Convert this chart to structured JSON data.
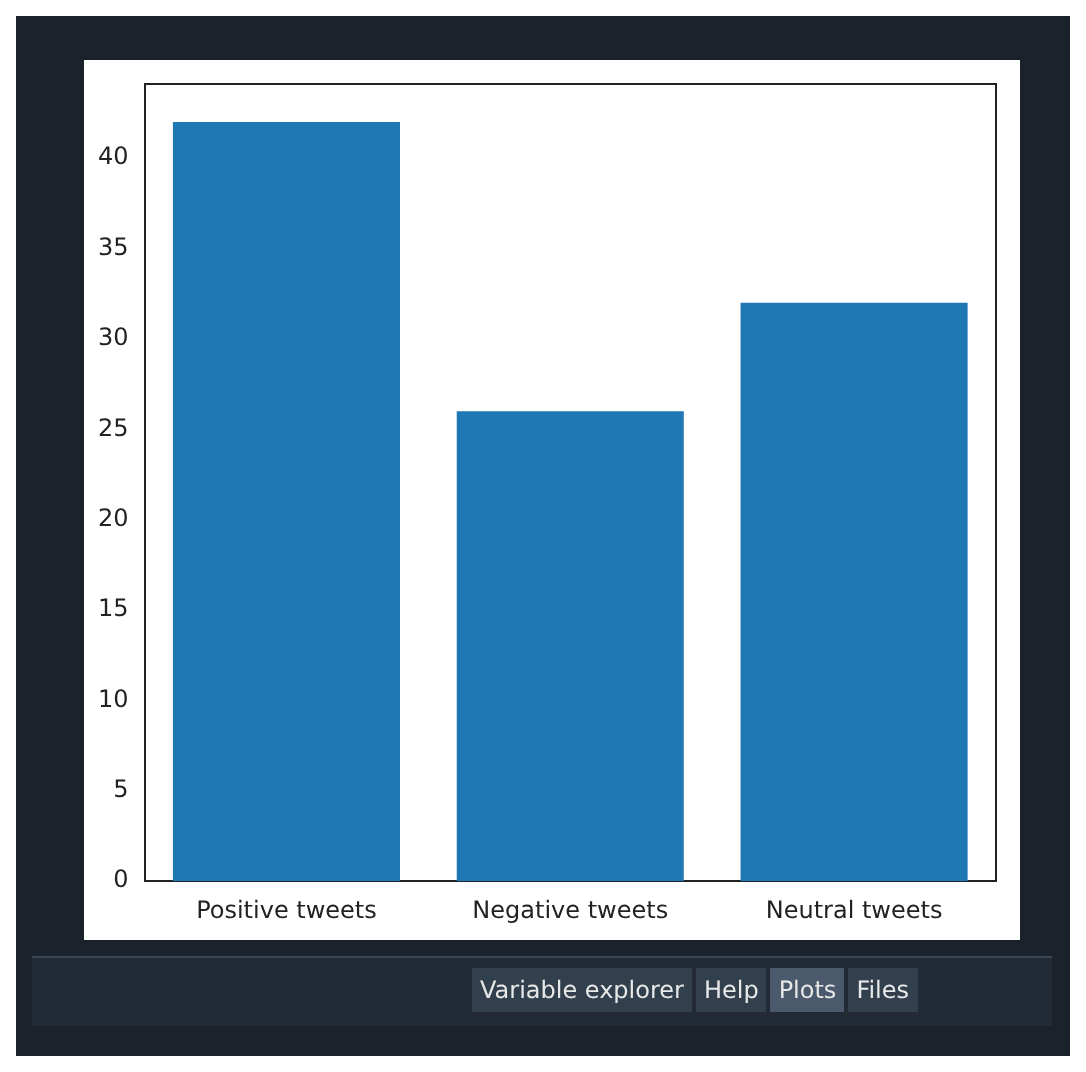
{
  "chart_data": {
    "type": "bar",
    "categories": [
      "Positive tweets",
      "Negative tweets",
      "Neutral tweets"
    ],
    "values": [
      42,
      26,
      32
    ],
    "color": "#1f77b4",
    "ylim": [
      0,
      44.1
    ],
    "yticks": [
      0,
      5,
      10,
      15,
      20,
      25,
      30,
      35,
      40
    ],
    "grid": false,
    "legend": false,
    "annotations": [
      "Variable explorer",
      "Help",
      "Plots",
      "Files"
    ]
  }
}
